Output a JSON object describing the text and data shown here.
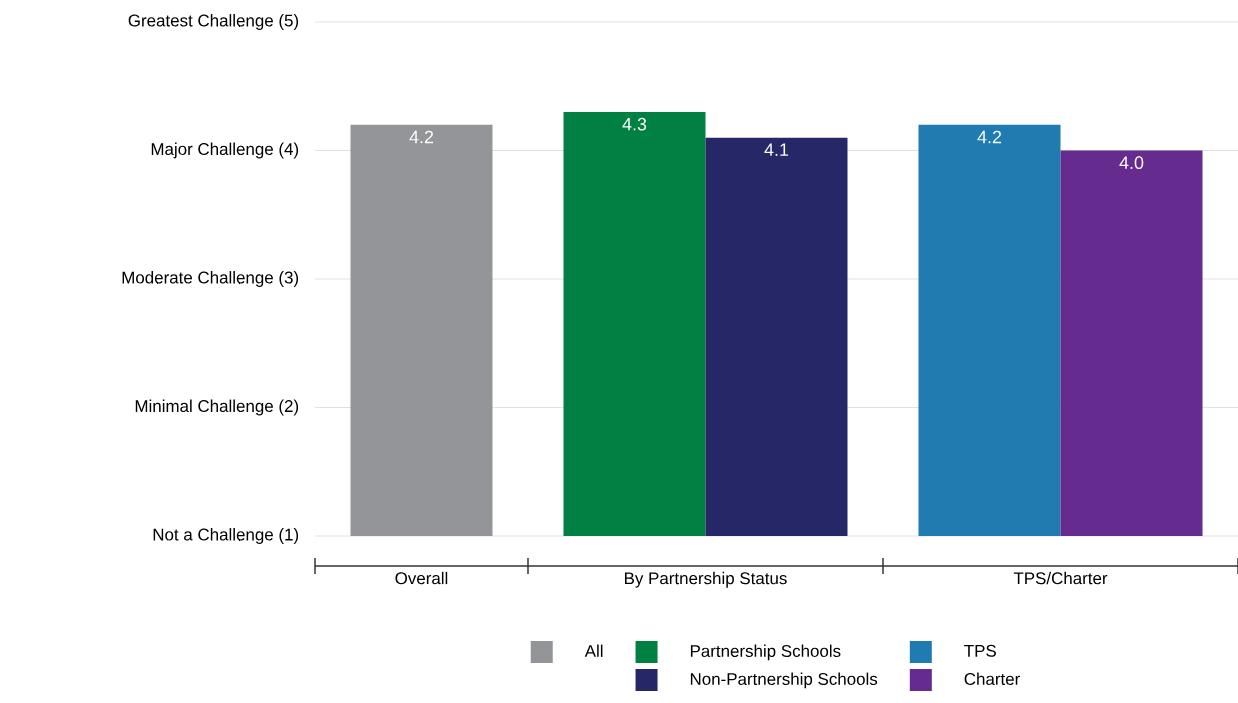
{
  "chart_data": {
    "type": "bar",
    "categories": [
      "Overall",
      "By Partnership Status",
      "TPS/Charter"
    ],
    "series": [
      {
        "name": "All",
        "color": "#939598",
        "values": [
          4.2,
          null,
          null
        ],
        "value_labels": [
          "4.2",
          null,
          null
        ]
      },
      {
        "name": "Partnership Schools",
        "color": "#008043",
        "values": [
          null,
          4.3,
          null
        ],
        "value_labels": [
          null,
          "4.3",
          null
        ]
      },
      {
        "name": "Non-Partnership Schools",
        "color": "#262766",
        "values": [
          null,
          4.1,
          null
        ],
        "value_labels": [
          null,
          "4.1",
          null
        ]
      },
      {
        "name": "TPS",
        "color": "#1f7bb0",
        "values": [
          null,
          null,
          4.2
        ],
        "value_labels": [
          null,
          null,
          "4.2"
        ]
      },
      {
        "name": "Charter",
        "color": "#652b8e",
        "values": [
          null,
          null,
          4.0
        ],
        "value_labels": [
          null,
          null,
          "4.0"
        ]
      }
    ],
    "ylim": [
      1,
      5
    ],
    "yticks": [
      {
        "value": 1,
        "label": "Not a Challenge (1)"
      },
      {
        "value": 2,
        "label": "Minimal Challenge (2)"
      },
      {
        "value": 3,
        "label": "Moderate Challenge (3)"
      },
      {
        "value": 4,
        "label": "Major Challenge (4)"
      },
      {
        "value": 5,
        "label": "Greatest Challenge (5)"
      }
    ],
    "grid": "y",
    "legend": "bottom"
  }
}
